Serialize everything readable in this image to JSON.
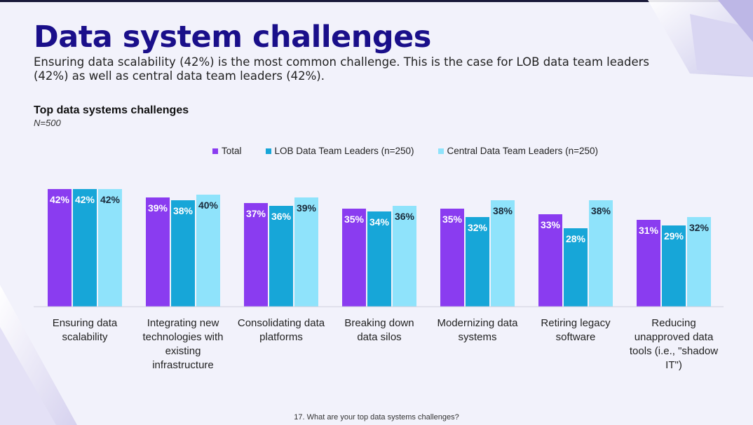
{
  "slide": {
    "title": "Data system challenges",
    "subtitle": "Ensuring data scalability (42%) is the most common challenge. This is the case for LOB data team leaders (42%) as well as central data team leaders (42%).",
    "footnote": "17. What are your top data systems challenges?"
  },
  "colors": {
    "title": "#1a0f8a",
    "total": "#8a3cf0",
    "lob": "#17a6d8",
    "central": "#8fe3fb"
  },
  "chart_data": {
    "type": "bar",
    "title": "Top data systems challenges",
    "sample_note": "N=500",
    "ylim": [
      0,
      100
    ],
    "legend_position": "top",
    "categories": [
      "Ensuring data scalability",
      "Integrating new technologies with existing infrastructure",
      "Consolidating data platforms",
      "Breaking down data silos",
      "Modernizing data systems",
      "Retiring legacy software",
      "Reducing unapproved data tools (i.e., \"shadow IT\")"
    ],
    "category_lines": [
      [
        "Ensuring data",
        "scalability"
      ],
      [
        "Integrating new",
        "technologies with",
        "existing",
        "infrastructure"
      ],
      [
        "Consolidating data",
        "platforms"
      ],
      [
        "Breaking down",
        "data silos"
      ],
      [
        "Modernizing data",
        "systems"
      ],
      [
        "Retiring legacy",
        "software"
      ],
      [
        "Reducing",
        "unapproved data",
        "tools (i.e., \"shadow",
        "IT\")"
      ]
    ],
    "series": [
      {
        "name": "Total",
        "color": "#8a3cf0",
        "label_color": "#ffffff",
        "values": [
          42,
          39,
          37,
          35,
          35,
          33,
          31
        ]
      },
      {
        "name": "LOB Data Team Leaders (n=250)",
        "color": "#17a6d8",
        "label_color": "#ffffff",
        "values": [
          42,
          38,
          36,
          34,
          32,
          28,
          29
        ]
      },
      {
        "name": "Central Data Team Leaders (n=250)",
        "color": "#8fe3fb",
        "label_color": "#1a2a3a",
        "values": [
          42,
          40,
          39,
          36,
          38,
          38,
          32
        ]
      }
    ]
  }
}
